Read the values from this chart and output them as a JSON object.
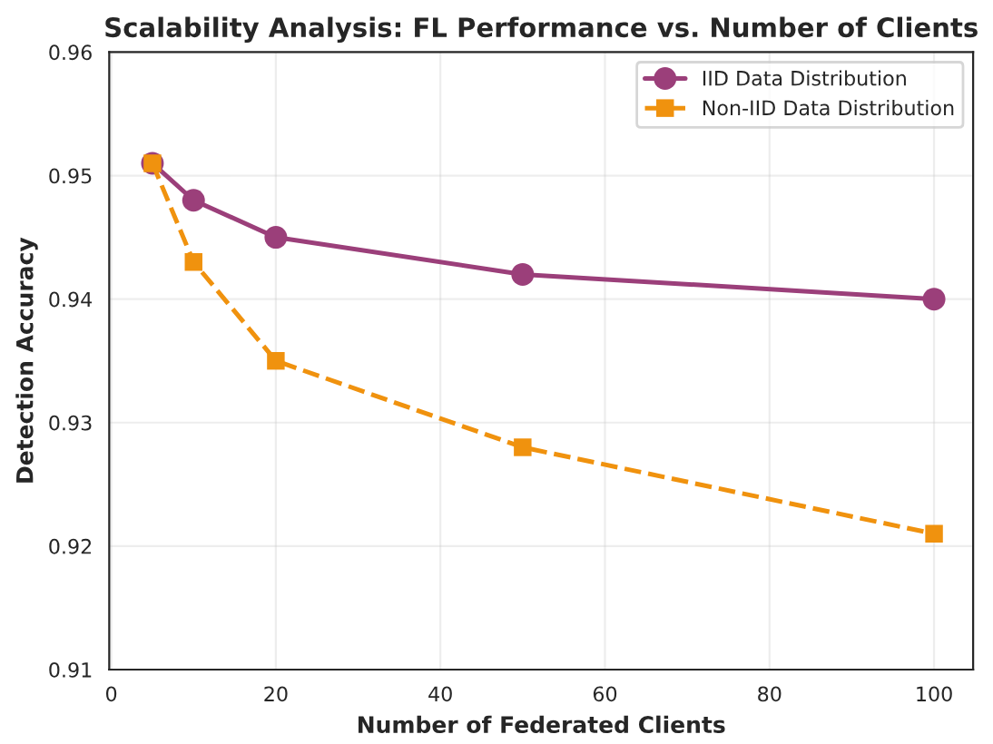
{
  "chart_data": {
    "type": "line",
    "title": "Scalability Analysis: FL Performance vs. Number of Clients",
    "xlabel": "Number of Federated Clients",
    "ylabel": "Detection Accuracy",
    "x": [
      5,
      10,
      20,
      50,
      100
    ],
    "series": [
      {
        "name": "IID Data Distribution",
        "color": "#9b3f7a",
        "marker": "circle",
        "line_style": "solid",
        "values": [
          0.951,
          0.948,
          0.945,
          0.942,
          0.94
        ]
      },
      {
        "name": "Non-IID Data Distribution",
        "color": "#f0920e",
        "marker": "square",
        "line_style": "dashed",
        "values": [
          0.951,
          0.943,
          0.935,
          0.928,
          0.921
        ]
      }
    ],
    "xlim": [
      -0.25,
      104.75
    ],
    "xticks": [
      0,
      20,
      40,
      60,
      80,
      100
    ],
    "ylim": [
      0.91,
      0.96
    ],
    "yticks": [
      {
        "value": 0.91,
        "label": "0.91"
      },
      {
        "value": 0.92,
        "label": "0.92"
      },
      {
        "value": 0.93,
        "label": "0.93"
      },
      {
        "value": 0.94,
        "label": "0.94"
      },
      {
        "value": 0.95,
        "label": "0.95"
      },
      {
        "value": 0.96,
        "label": "0.96"
      }
    ],
    "grid": true,
    "legend": "top right"
  }
}
